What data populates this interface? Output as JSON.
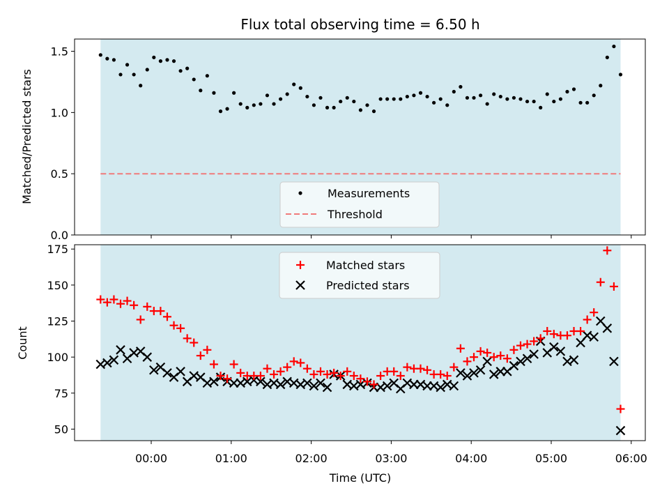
{
  "chart_data": [
    {
      "type": "scatter",
      "title": "Flux total observing time = 6.50 h",
      "ylabel": "Matched/Predicted stars",
      "ylim": [
        0,
        1.6
      ],
      "yticks": [
        "0.0",
        "0.5",
        "1.0",
        "1.5"
      ],
      "observing_window": [
        "23:22",
        "05:52"
      ],
      "threshold": 0.5,
      "legend": {
        "placement": "lower-center",
        "entries": [
          "Measurements",
          "Threshold"
        ]
      },
      "colors": {
        "shade": "#d4eaf0",
        "points": "#000000",
        "threshold": "#f07a7a"
      },
      "series": [
        {
          "name": "Measurements",
          "x": [
            "23:22",
            "23:27",
            "23:32",
            "23:37",
            "23:42",
            "23:47",
            "23:52",
            "23:57",
            "00:02",
            "00:07",
            "00:12",
            "00:17",
            "00:22",
            "00:27",
            "00:32",
            "00:37",
            "00:42",
            "00:47",
            "00:52",
            "00:57",
            "01:02",
            "01:07",
            "01:12",
            "01:17",
            "01:22",
            "01:27",
            "01:32",
            "01:37",
            "01:42",
            "01:47",
            "01:52",
            "01:57",
            "02:02",
            "02:07",
            "02:12",
            "02:17",
            "02:22",
            "02:27",
            "02:32",
            "02:37",
            "02:42",
            "02:47",
            "02:52",
            "02:57",
            "03:02",
            "03:07",
            "03:12",
            "03:17",
            "03:22",
            "03:27",
            "03:32",
            "03:37",
            "03:42",
            "03:47",
            "03:52",
            "03:57",
            "04:02",
            "04:07",
            "04:12",
            "04:17",
            "04:22",
            "04:27",
            "04:32",
            "04:37",
            "04:42",
            "04:47",
            "04:52",
            "04:57",
            "05:02",
            "05:07",
            "05:12",
            "05:17",
            "05:22",
            "05:27",
            "05:32",
            "05:37",
            "05:42",
            "05:47",
            "05:52"
          ],
          "y": [
            1.47,
            1.44,
            1.43,
            1.31,
            1.39,
            1.31,
            1.22,
            1.35,
            1.45,
            1.42,
            1.43,
            1.42,
            1.34,
            1.36,
            1.27,
            1.18,
            1.3,
            1.16,
            1.01,
            1.03,
            1.16,
            1.07,
            1.04,
            1.06,
            1.07,
            1.14,
            1.07,
            1.11,
            1.15,
            1.23,
            1.2,
            1.13,
            1.06,
            1.12,
            1.04,
            1.04,
            1.09,
            1.12,
            1.09,
            1.02,
            1.06,
            1.01,
            1.11,
            1.11,
            1.11,
            1.11,
            1.13,
            1.14,
            1.16,
            1.13,
            1.08,
            1.11,
            1.06,
            1.17,
            1.21,
            1.12,
            1.12,
            1.14,
            1.07,
            1.15,
            1.13,
            1.11,
            1.12,
            1.11,
            1.09,
            1.09,
            1.04,
            1.15,
            1.09,
            1.11,
            1.17,
            1.19,
            1.08,
            1.08,
            1.14,
            1.22,
            1.45,
            1.54,
            1.31
          ]
        }
      ]
    },
    {
      "type": "scatter",
      "xlabel": "Time (UTC)",
      "ylabel": "Count",
      "ylim": [
        42,
        178
      ],
      "yticks": [
        "50",
        "75",
        "100",
        "125",
        "150",
        "175"
      ],
      "xticks": [
        "00:00",
        "01:00",
        "02:00",
        "03:00",
        "04:00",
        "05:00",
        "06:00"
      ],
      "legend": {
        "placement": "top-center",
        "entries": [
          "Matched stars",
          "Predicted stars"
        ]
      },
      "colors": {
        "matched": "#ff0000",
        "predicted": "#000000"
      },
      "x": [
        "23:22",
        "23:27",
        "23:32",
        "23:37",
        "23:42",
        "23:47",
        "23:52",
        "23:57",
        "00:02",
        "00:07",
        "00:12",
        "00:17",
        "00:22",
        "00:27",
        "00:32",
        "00:37",
        "00:42",
        "00:47",
        "00:52",
        "00:57",
        "01:02",
        "01:07",
        "01:12",
        "01:17",
        "01:22",
        "01:27",
        "01:32",
        "01:37",
        "01:42",
        "01:47",
        "01:52",
        "01:57",
        "02:02",
        "02:07",
        "02:12",
        "02:17",
        "02:22",
        "02:27",
        "02:32",
        "02:37",
        "02:42",
        "02:47",
        "02:52",
        "02:57",
        "03:02",
        "03:07",
        "03:12",
        "03:17",
        "03:22",
        "03:27",
        "03:32",
        "03:37",
        "03:42",
        "03:47",
        "03:52",
        "03:57",
        "04:02",
        "04:07",
        "04:12",
        "04:17",
        "04:22",
        "04:27",
        "04:32",
        "04:37",
        "04:42",
        "04:47",
        "04:52",
        "04:57",
        "05:02",
        "05:07",
        "05:12",
        "05:17",
        "05:22",
        "05:27",
        "05:32",
        "05:37",
        "05:42",
        "05:47",
        "05:52"
      ],
      "series": [
        {
          "name": "Matched stars",
          "values": [
            140,
            138,
            140,
            137,
            139,
            136,
            126,
            135,
            132,
            132,
            128,
            122,
            120,
            113,
            110,
            101,
            105,
            95,
            87,
            85,
            95,
            89,
            87,
            87,
            87,
            92,
            88,
            90,
            93,
            97,
            96,
            92,
            88,
            90,
            88,
            89,
            87,
            90,
            87,
            85,
            83,
            81,
            87,
            90,
            90,
            87,
            93,
            92,
            92,
            91,
            88,
            88,
            87,
            93,
            106,
            97,
            100,
            104,
            103,
            100,
            101,
            99,
            105,
            108,
            109,
            111,
            113,
            118,
            116,
            115,
            115,
            118,
            118,
            126,
            131,
            152,
            174,
            149,
            64
          ]
        },
        {
          "name": "Predicted stars",
          "values": [
            95,
            96,
            98,
            105,
            99,
            103,
            104,
            100,
            91,
            93,
            89,
            86,
            90,
            83,
            87,
            86,
            82,
            83,
            86,
            83,
            82,
            82,
            83,
            84,
            83,
            81,
            82,
            81,
            83,
            82,
            81,
            82,
            80,
            82,
            79,
            88,
            87,
            81,
            80,
            81,
            82,
            79,
            79,
            80,
            82,
            78,
            82,
            81,
            81,
            80,
            80,
            79,
            81,
            80,
            89,
            87,
            89,
            91,
            97,
            88,
            90,
            90,
            94,
            97,
            99,
            102,
            111,
            103,
            107,
            104,
            97,
            98,
            110,
            115,
            114,
            125,
            120,
            97,
            49
          ]
        }
      ]
    }
  ]
}
